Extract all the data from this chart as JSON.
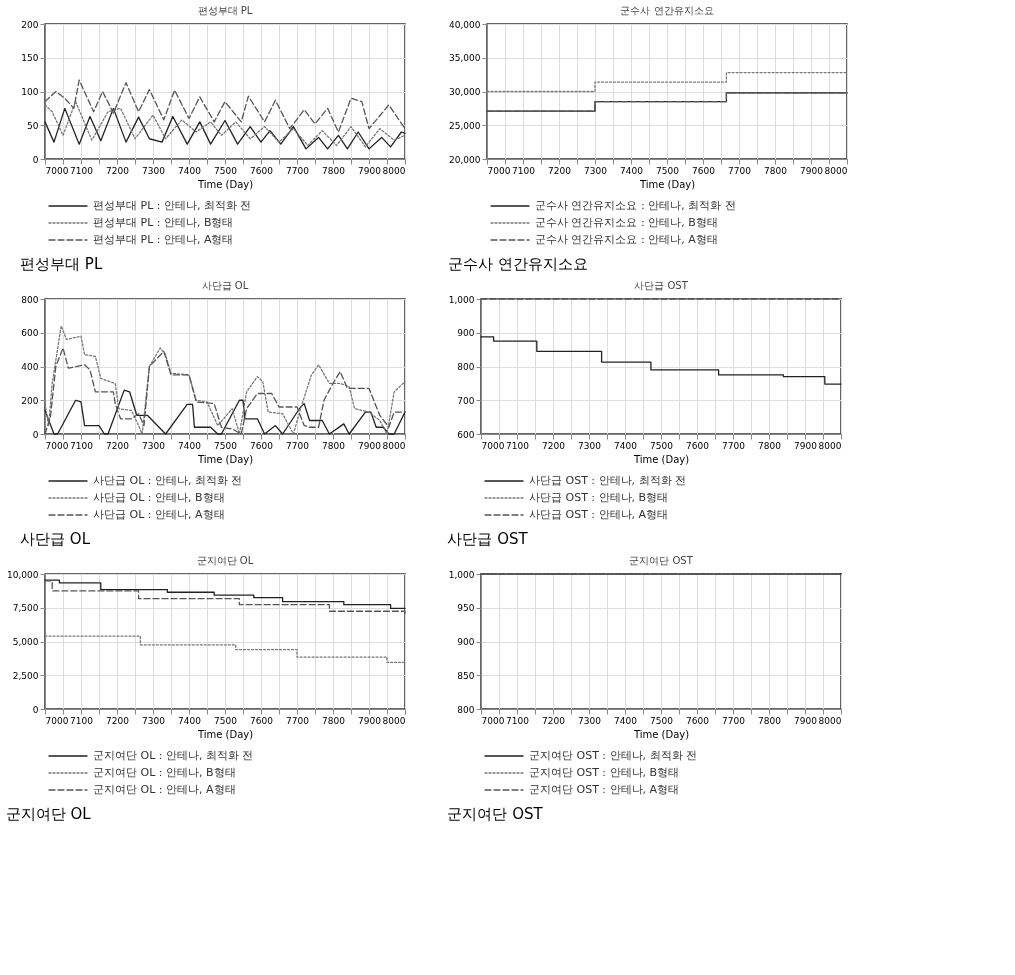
{
  "chart_data": [
    {
      "type": "line",
      "title": "편성부대 PL",
      "xlabel": "Time (Day)",
      "annotations": [
        "편성부대 PL"
      ],
      "xlim": [
        7000,
        8000
      ],
      "xticks": [
        7000,
        {
          "value": 7050,
          "label": null
        },
        7100,
        {
          "value": 7150,
          "label": null
        },
        7200,
        {
          "value": 7250,
          "label": null
        },
        7300,
        {
          "value": 7350,
          "label": null
        },
        7400,
        {
          "value": 7450,
          "label": null
        },
        7500,
        {
          "value": 7550,
          "label": null
        },
        7600,
        {
          "value": 7650,
          "label": null
        },
        7700,
        {
          "value": 7750,
          "label": null
        },
        7800,
        {
          "value": 7850,
          "label": null
        },
        7900,
        {
          "value": 7950,
          "label": null
        },
        8000
      ],
      "ylim": [
        0,
        200
      ],
      "yticks": [
        0,
        50,
        100,
        150,
        200
      ],
      "grid": true,
      "legend": "bottom",
      "series": [
        {
          "name": "편성부대 PL : 안테나, 최적화 전",
          "color": "#222222",
          "line_style": "solid",
          "x": [
            7000,
            7025,
            7055,
            7095,
            7125,
            7155,
            7190,
            7225,
            7260,
            7290,
            7325,
            7355,
            7395,
            7430,
            7460,
            7500,
            7535,
            7570,
            7600,
            7625,
            7655,
            7690,
            7725,
            7760,
            7785,
            7815,
            7840,
            7870,
            7900,
            7935,
            7960,
            7990,
            8000
          ],
          "values": [
            55,
            25,
            75,
            22,
            63,
            27,
            75,
            25,
            62,
            30,
            25,
            63,
            22,
            55,
            22,
            57,
            22,
            48,
            25,
            42,
            22,
            48,
            15,
            32,
            15,
            35,
            15,
            40,
            15,
            32,
            18,
            40,
            38
          ]
        },
        {
          "name": "편성부대 PL : 안테나, B형태",
          "color": "#777777",
          "line_style": "dotted",
          "x": [
            7000,
            7020,
            7050,
            7085,
            7130,
            7175,
            7210,
            7250,
            7300,
            7335,
            7380,
            7420,
            7460,
            7490,
            7530,
            7570,
            7610,
            7650,
            7690,
            7730,
            7770,
            7810,
            7850,
            7890,
            7930,
            7970,
            8000
          ],
          "values": [
            80,
            70,
            35,
            85,
            28,
            70,
            75,
            30,
            65,
            30,
            58,
            40,
            55,
            35,
            55,
            30,
            48,
            25,
            45,
            20,
            42,
            20,
            48,
            18,
            45,
            28,
            35
          ]
        },
        {
          "name": "편성부대 PL : 안테나, A형태",
          "color": "#555555",
          "line_style": "dashed",
          "x": [
            7000,
            7030,
            7055,
            7080,
            7095,
            7135,
            7160,
            7190,
            7225,
            7260,
            7290,
            7330,
            7360,
            7400,
            7430,
            7470,
            7500,
            7545,
            7565,
            7610,
            7640,
            7680,
            7720,
            7750,
            7785,
            7815,
            7850,
            7880,
            7900,
            7955,
            8000
          ],
          "values": [
            85,
            100,
            90,
            75,
            117,
            70,
            100,
            68,
            113,
            70,
            103,
            58,
            102,
            60,
            92,
            55,
            85,
            55,
            93,
            55,
            87,
            45,
            73,
            52,
            75,
            40,
            90,
            85,
            45,
            80,
            45
          ]
        }
      ]
    },
    {
      "type": "step",
      "title": "군수사 연간유지소요",
      "xlabel": "Time (Day)",
      "annotations": [
        "군수사 연간유지소요"
      ],
      "xlim": [
        7000,
        8000
      ],
      "xticks": [
        7000,
        {
          "value": 7050,
          "label": null
        },
        7100,
        {
          "value": 7150,
          "label": null
        },
        7200,
        {
          "value": 7250,
          "label": null
        },
        7300,
        {
          "value": 7350,
          "label": null
        },
        7400,
        {
          "value": 7450,
          "label": null
        },
        7500,
        {
          "value": 7550,
          "label": null
        },
        7600,
        {
          "value": 7650,
          "label": null
        },
        7700,
        {
          "value": 7750,
          "label": null
        },
        7800,
        {
          "value": 7850,
          "label": null
        },
        7900,
        {
          "value": 7950,
          "label": null
        },
        8000
      ],
      "ylim": [
        20000,
        40000
      ],
      "yticks": [
        {
          "value": 20000,
          "label": "20,000"
        },
        {
          "value": 25000,
          "label": "25,000"
        },
        {
          "value": 30000,
          "label": "30,000"
        },
        {
          "value": 35000,
          "label": "35,000"
        },
        {
          "value": 40000,
          "label": "40,000"
        }
      ],
      "grid": true,
      "legend": "bottom",
      "series": [
        {
          "name": "군수사 연간유지소요 : 안테나, 최적화 전",
          "color": "#222222",
          "line_style": "solid",
          "x": [
            7000,
            7300,
            7665,
            8000
          ],
          "values": [
            27100,
            28500,
            29800,
            29800
          ]
        },
        {
          "name": "군수사 연간유지소요 : 안테나, B형태",
          "color": "#777777",
          "line_style": "dotted",
          "x": [
            7000,
            7300,
            7665,
            8000
          ],
          "values": [
            30000,
            31400,
            32800,
            32800
          ]
        },
        {
          "name": "군수사 연간유지소요 : 안테나, A형태",
          "color": "#555555",
          "line_style": "dashed",
          "x": [
            7000,
            7300,
            7665,
            8000
          ],
          "values": [
            27100,
            28500,
            29800,
            29800
          ]
        }
      ]
    },
    {
      "type": "line",
      "title": "사단급 OL",
      "xlabel": "Time (Day)",
      "annotations": [
        "사단급 OL"
      ],
      "xlim": [
        7000,
        8000
      ],
      "xticks": [
        7000,
        {
          "value": 7050,
          "label": null
        },
        7100,
        {
          "value": 7150,
          "label": null
        },
        7200,
        {
          "value": 7250,
          "label": null
        },
        7300,
        {
          "value": 7350,
          "label": null
        },
        7400,
        {
          "value": 7450,
          "label": null
        },
        7500,
        {
          "value": 7550,
          "label": null
        },
        7600,
        {
          "value": 7650,
          "label": null
        },
        7700,
        {
          "value": 7750,
          "label": null
        },
        7800,
        {
          "value": 7850,
          "label": null
        },
        7900,
        {
          "value": 7950,
          "label": null
        },
        8000
      ],
      "ylim": [
        0,
        800
      ],
      "yticks": [
        0,
        200,
        400,
        600,
        800
      ],
      "grid": true,
      "legend": "bottom",
      "series": [
        {
          "name": "사단급 OL : 안테나, 최적화 전",
          "color": "#222222",
          "line_style": "solid",
          "x": [
            7000,
            7025,
            7035,
            7085,
            7100,
            7110,
            7150,
            7165,
            7175,
            7220,
            7235,
            7255,
            7285,
            7335,
            7395,
            7410,
            7415,
            7460,
            7480,
            7490,
            7540,
            7550,
            7555,
            7590,
            7610,
            7640,
            7660,
            7710,
            7720,
            7735,
            7770,
            7790,
            7830,
            7845,
            7890,
            7905,
            7920,
            7940,
            7955,
            7970,
            8000
          ],
          "values": [
            140,
            0,
            0,
            200,
            190,
            50,
            50,
            0,
            0,
            260,
            250,
            110,
            110,
            0,
            175,
            175,
            40,
            40,
            0,
            0,
            200,
            200,
            90,
            90,
            0,
            50,
            0,
            160,
            180,
            80,
            80,
            0,
            60,
            0,
            130,
            130,
            40,
            40,
            0,
            0,
            130
          ]
        },
        {
          "name": "사단급 OL : 안테나, B형태",
          "color": "#777777",
          "line_style": "dotted",
          "x": [
            7000,
            7010,
            7020,
            7045,
            7060,
            7100,
            7110,
            7140,
            7155,
            7180,
            7195,
            7205,
            7240,
            7260,
            7270,
            7290,
            7320,
            7335,
            7350,
            7400,
            7420,
            7450,
            7480,
            7520,
            7540,
            7560,
            7590,
            7605,
            7620,
            7660,
            7690,
            7710,
            7740,
            7760,
            7790,
            7820,
            7845,
            7860,
            7900,
            7930,
            7950,
            7970,
            8000
          ],
          "values": [
            180,
            50,
            300,
            640,
            560,
            580,
            470,
            460,
            330,
            310,
            300,
            150,
            140,
            50,
            0,
            400,
            510,
            470,
            360,
            350,
            200,
            190,
            50,
            150,
            0,
            250,
            340,
            310,
            130,
            120,
            0,
            150,
            350,
            410,
            300,
            300,
            280,
            150,
            130,
            80,
            0,
            250,
            310
          ]
        },
        {
          "name": "사단급 OL : 안테나, A형태",
          "color": "#555555",
          "line_style": "dashed",
          "x": [
            7000,
            7015,
            7030,
            7050,
            7065,
            7110,
            7125,
            7140,
            7190,
            7195,
            7210,
            7240,
            7260,
            7275,
            7290,
            7330,
            7350,
            7400,
            7420,
            7470,
            7490,
            7520,
            7545,
            7560,
            7590,
            7630,
            7650,
            7700,
            7720,
            7735,
            7760,
            7775,
            7800,
            7820,
            7840,
            7900,
            7930,
            7955,
            7970,
            8000
          ],
          "values": [
            0,
            100,
            400,
            510,
            390,
            410,
            380,
            250,
            250,
            180,
            90,
            90,
            120,
            50,
            400,
            490,
            350,
            350,
            190,
            180,
            40,
            30,
            0,
            150,
            240,
            240,
            160,
            160,
            50,
            40,
            40,
            200,
            300,
            370,
            270,
            270,
            110,
            40,
            130,
            130
          ]
        }
      ]
    },
    {
      "type": "step",
      "title": "사단급 OST",
      "xlabel": "Time (Day)",
      "annotations": [
        "사단급 OST"
      ],
      "xlim": [
        7000,
        8000
      ],
      "xticks": [
        7000,
        {
          "value": 7050,
          "label": null
        },
        7100,
        {
          "value": 7150,
          "label": null
        },
        7200,
        {
          "value": 7250,
          "label": null
        },
        7300,
        {
          "value": 7350,
          "label": null
        },
        7400,
        {
          "value": 7450,
          "label": null
        },
        7500,
        {
          "value": 7550,
          "label": null
        },
        7600,
        {
          "value": 7650,
          "label": null
        },
        7700,
        {
          "value": 7750,
          "label": null
        },
        7800,
        {
          "value": 7850,
          "label": null
        },
        7900,
        {
          "value": 7950,
          "label": null
        },
        8000
      ],
      "ylim": [
        600,
        1000
      ],
      "yticks": [
        600,
        700,
        800,
        900,
        {
          "value": 1000,
          "label": "1,000"
        }
      ],
      "grid": true,
      "legend": "bottom",
      "series": [
        {
          "name": "사단급 OST : 안테나, 최적화 전",
          "color": "#222222",
          "line_style": "solid",
          "x": [
            7000,
            7035,
            7155,
            7335,
            7472,
            7660,
            7840,
            7955,
            8000
          ],
          "values": [
            888,
            875,
            845,
            813,
            790,
            775,
            770,
            748,
            748
          ]
        },
        {
          "name": "사단급 OST : 안테나, B형태",
          "color": "#777777",
          "line_style": "dotted",
          "x": [
            7000,
            8000
          ],
          "values": [
            1000,
            1000
          ]
        },
        {
          "name": "사단급 OST : 안테나, A형태",
          "color": "#555555",
          "line_style": "dashed",
          "x": [
            7000,
            8000
          ],
          "values": [
            1000,
            1000
          ]
        }
      ]
    },
    {
      "type": "step",
      "title": "군지여단 OL",
      "xlabel": "Time (Day)",
      "annotations": [
        "군지여단 OL"
      ],
      "xlim": [
        7000,
        8000
      ],
      "xticks": [
        7000,
        {
          "value": 7050,
          "label": null
        },
        7100,
        {
          "value": 7150,
          "label": null
        },
        7200,
        {
          "value": 7250,
          "label": null
        },
        7300,
        {
          "value": 7350,
          "label": null
        },
        7400,
        {
          "value": 7450,
          "label": null
        },
        7500,
        {
          "value": 7550,
          "label": null
        },
        7600,
        {
          "value": 7650,
          "label": null
        },
        7700,
        {
          "value": 7750,
          "label": null
        },
        7800,
        {
          "value": 7850,
          "label": null
        },
        7900,
        {
          "value": 7950,
          "label": null
        },
        8000
      ],
      "ylim": [
        0,
        10000
      ],
      "yticks": [
        0,
        {
          "value": 2500,
          "label": "2,500"
        },
        {
          "value": 5000,
          "label": "5,000"
        },
        {
          "value": 7500,
          "label": "7,500"
        },
        {
          "value": 10000,
          "label": "10,000"
        }
      ],
      "grid": true,
      "legend": "bottom",
      "series": [
        {
          "name": "군지여단 OL : 안테나, 최적화 전",
          "color": "#222222",
          "line_style": "solid",
          "x": [
            7000,
            7040,
            7155,
            7340,
            7470,
            7580,
            7660,
            7830,
            7960,
            8000
          ],
          "values": [
            9550,
            9340,
            8850,
            8650,
            8430,
            8250,
            7950,
            7730,
            7450,
            7450
          ]
        },
        {
          "name": "군지여단 OL : 안테나, B형태",
          "color": "#777777",
          "line_style": "dotted",
          "x": [
            7000,
            7265,
            7530,
            7700,
            7950,
            8000
          ],
          "values": [
            5400,
            4750,
            4400,
            3850,
            3450,
            3450
          ]
        },
        {
          "name": "군지여단 OL : 안테나, A형태",
          "color": "#555555",
          "line_style": "dashed",
          "x": [
            7000,
            7020,
            7260,
            7540,
            7790,
            8000
          ],
          "values": [
            9500,
            8750,
            8170,
            7730,
            7240,
            7100
          ]
        }
      ]
    },
    {
      "type": "step",
      "title": "군지여단 OST",
      "xlabel": "Time (Day)",
      "annotations": [
        "군지여단 OST"
      ],
      "xlim": [
        7000,
        8000
      ],
      "xticks": [
        7000,
        {
          "value": 7050,
          "label": null
        },
        7100,
        {
          "value": 7150,
          "label": null
        },
        7200,
        {
          "value": 7250,
          "label": null
        },
        7300,
        {
          "value": 7350,
          "label": null
        },
        7400,
        {
          "value": 7450,
          "label": null
        },
        7500,
        {
          "value": 7550,
          "label": null
        },
        7600,
        {
          "value": 7650,
          "label": null
        },
        7700,
        {
          "value": 7750,
          "label": null
        },
        7800,
        {
          "value": 7850,
          "label": null
        },
        7900,
        {
          "value": 7950,
          "label": null
        },
        8000
      ],
      "ylim": [
        800,
        1000
      ],
      "yticks": [
        800,
        850,
        900,
        950,
        {
          "value": 1000,
          "label": "1,000"
        }
      ],
      "grid": true,
      "legend": "bottom",
      "series": [
        {
          "name": "군지여단 OST : 안테나, 최적화 전",
          "color": "#222222",
          "line_style": "solid",
          "x": [
            7000,
            8000
          ],
          "values": [
            1000,
            1000
          ]
        },
        {
          "name": "군지여단 OST : 안테나, B형태",
          "color": "#777777",
          "line_style": "dotted",
          "x": [
            7000,
            8000
          ],
          "values": [
            1000,
            1000
          ]
        },
        {
          "name": "군지여단 OST : 안테나, A형태",
          "color": "#555555",
          "line_style": "dashed",
          "x": [
            7000,
            8000
          ],
          "values": [
            1000,
            1000
          ]
        }
      ]
    }
  ]
}
